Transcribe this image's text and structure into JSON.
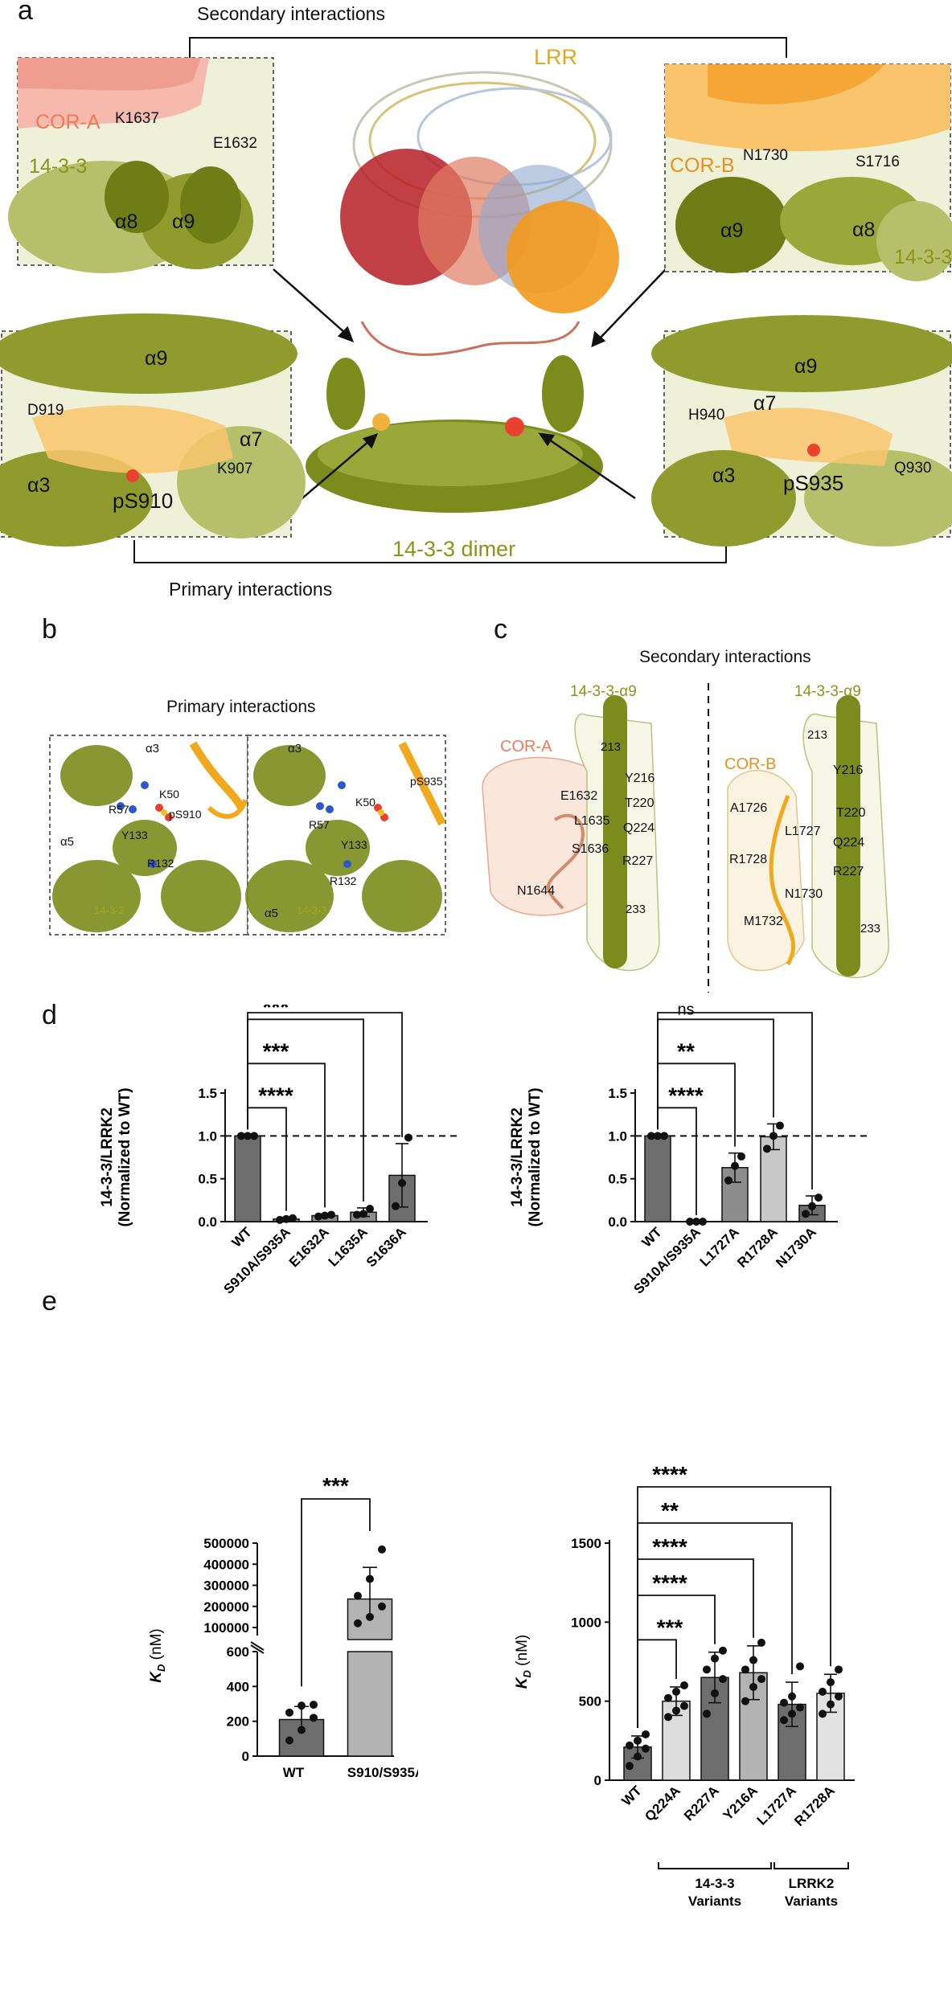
{
  "panels": {
    "a": "a",
    "b": "b",
    "c": "c",
    "d": "d",
    "e": "e"
  },
  "panel_a": {
    "secondary_title": "Secondary  interactions",
    "primary_title": "Primary  interactions",
    "lrr": "LRR",
    "dimer": "14-3-3 dimer",
    "tl": {
      "cor": "COR-A",
      "k": "K1637",
      "e": "E1632",
      "p": "14-3-3",
      "a8": "α8",
      "a9": "α9"
    },
    "tr": {
      "cor": "COR-B",
      "n": "N1730",
      "s": "S1716",
      "a9": "α9",
      "a8": "α8",
      "p": "14-3-3"
    },
    "bl": {
      "a9": "α9",
      "d": "D919",
      "a7": "α7",
      "k": "K907",
      "a3": "α3",
      "ps": "pS910"
    },
    "br": {
      "a9": "α9",
      "h": "H940",
      "a7": "α7",
      "a3": "α3",
      "ps": "pS935",
      "q": "Q930"
    }
  },
  "panel_b": {
    "title": "Primary interactions",
    "left": {
      "a3": "α3",
      "k50": "K50",
      "r57": "R57",
      "ps": "pS910",
      "y133": "Y133",
      "a5": "α5",
      "r132": "R132",
      "p": "14-3-3"
    },
    "right": {
      "a3": "α3",
      "r57": "R57",
      "k50": "K50",
      "ps": "pS935",
      "y133": "Y133",
      "a5": "α5",
      "r132": "R132",
      "p": "14-3-3"
    }
  },
  "panel_c": {
    "title": "Secondary  interactions",
    "left": {
      "helix": "14-3-3-α9",
      "cor": "COR-A",
      "r213": "213",
      "y216": "Y216",
      "e1632": "E1632",
      "t220": "T220",
      "l1635": "L1635",
      "q224": "Q224",
      "s1636": "S1636",
      "r227": "R227",
      "n1644": "N1644",
      "r233": "233"
    },
    "right": {
      "helix": "14-3-3-α9",
      "r213": "213",
      "cor": "COR-B",
      "y216": "Y216",
      "a1726": "A1726",
      "t220": "T220",
      "l1727": "L1727",
      "q224": "Q224",
      "r1728": "R1728",
      "r227": "R227",
      "n1730": "N1730",
      "m1732": "M1732",
      "r233": "233"
    }
  },
  "chart_data": [
    {
      "type": "bar",
      "ylabel": "14-3-3/LRRK2\n(Normalized to WT)",
      "ylim": [
        0,
        1.5
      ],
      "yticks": [
        "0.0",
        "0.5",
        "1.0",
        "1.5"
      ],
      "reference_line": 1.0,
      "categories": [
        "WT",
        "S910A/S935A",
        "E1632A",
        "L1635A",
        "S1636A"
      ],
      "values": [
        1.0,
        0.03,
        0.07,
        0.11,
        0.54
      ],
      "errors": [
        0.0,
        0.02,
        0.02,
        0.05,
        0.37
      ],
      "points": [
        [
          1.0,
          1.0,
          1.0
        ],
        [
          0.02,
          0.03,
          0.04
        ],
        [
          0.06,
          0.07,
          0.08
        ],
        [
          0.08,
          0.09,
          0.15
        ],
        [
          0.18,
          0.45,
          0.98
        ]
      ],
      "bar_colors": [
        "#6e6e6e",
        "#8d8d8d",
        "#8d8d8d",
        "#8d8d8d",
        "#6e6e6e"
      ],
      "significance": [
        "****",
        "***",
        "***",
        "*"
      ]
    },
    {
      "type": "bar",
      "ylabel": "14-3-3/LRRK2\n(Normalized to WT)",
      "ylim": [
        0,
        1.5
      ],
      "yticks": [
        "0.0",
        "0.5",
        "1.0",
        "1.5"
      ],
      "reference_line": 1.0,
      "categories": [
        "WT",
        "S910A/S935A",
        "L1727A",
        "R1728A",
        "N1730A"
      ],
      "values": [
        1.0,
        0.0,
        0.63,
        0.99,
        0.19
      ],
      "errors": [
        0.0,
        0.0,
        0.17,
        0.15,
        0.11
      ],
      "points": [
        [
          1.0,
          1.0,
          1.0
        ],
        [
          0.0,
          0.0,
          0.0
        ],
        [
          0.48,
          0.65,
          0.76
        ],
        [
          0.85,
          1.0,
          1.12
        ],
        [
          0.09,
          0.18,
          0.28
        ]
      ],
      "bar_colors": [
        "#6e6e6e",
        "#8d8d8d",
        "#8d8d8d",
        "#c8c8c8",
        "#6e6e6e"
      ],
      "significance": [
        "****",
        "**",
        "ns",
        "****"
      ]
    },
    {
      "type": "bar",
      "ylabel": "K_D (nM)",
      "axis_break": true,
      "yticks_lower": [
        "0",
        "200",
        "400",
        "600"
      ],
      "yticks_upper": [
        "100000",
        "200000",
        "300000",
        "400000",
        "500000"
      ],
      "categories": [
        "WT",
        "S910/S935A"
      ],
      "values": [
        210,
        235000
      ],
      "errors": [
        75,
        150000
      ],
      "points": [
        [
          90,
          150,
          220,
          250,
          290,
          295
        ],
        [
          120000,
          150000,
          200000,
          250000,
          330000,
          470000
        ]
      ],
      "bar_colors": [
        "#6e6e6e",
        "#b3b3b3"
      ],
      "significance": [
        "***"
      ]
    },
    {
      "type": "bar",
      "ylabel": "K_D (nM)",
      "ylim": [
        0,
        1500
      ],
      "yticks": [
        "0",
        "500",
        "1000",
        "1500"
      ],
      "categories": [
        "WT",
        "Q224A",
        "R227A",
        "Y216A",
        "L1727A",
        "R1728A"
      ],
      "values": [
        210,
        500,
        650,
        680,
        480,
        550
      ],
      "errors": [
        70,
        90,
        160,
        170,
        140,
        120
      ],
      "points": [
        [
          90,
          150,
          200,
          220,
          250,
          290
        ],
        [
          400,
          440,
          470,
          520,
          560,
          600
        ],
        [
          420,
          550,
          640,
          700,
          770,
          820
        ],
        [
          500,
          590,
          640,
          700,
          760,
          870
        ],
        [
          380,
          420,
          460,
          490,
          530,
          720
        ],
        [
          420,
          480,
          530,
          560,
          620,
          700
        ]
      ],
      "bar_colors": [
        "#6e6e6e",
        "#dcdcdc",
        "#6e6e6e",
        "#b3b3b3",
        "#6e6e6e",
        "#e2e2e2"
      ],
      "significance": [
        "***",
        "****",
        "****",
        "**",
        "****"
      ],
      "groups": [
        {
          "label": "14-3-3\nVariants",
          "from": 1,
          "to": 3
        },
        {
          "label": "LRRK2\nVariants",
          "from": 4,
          "to": 5
        }
      ]
    }
  ]
}
